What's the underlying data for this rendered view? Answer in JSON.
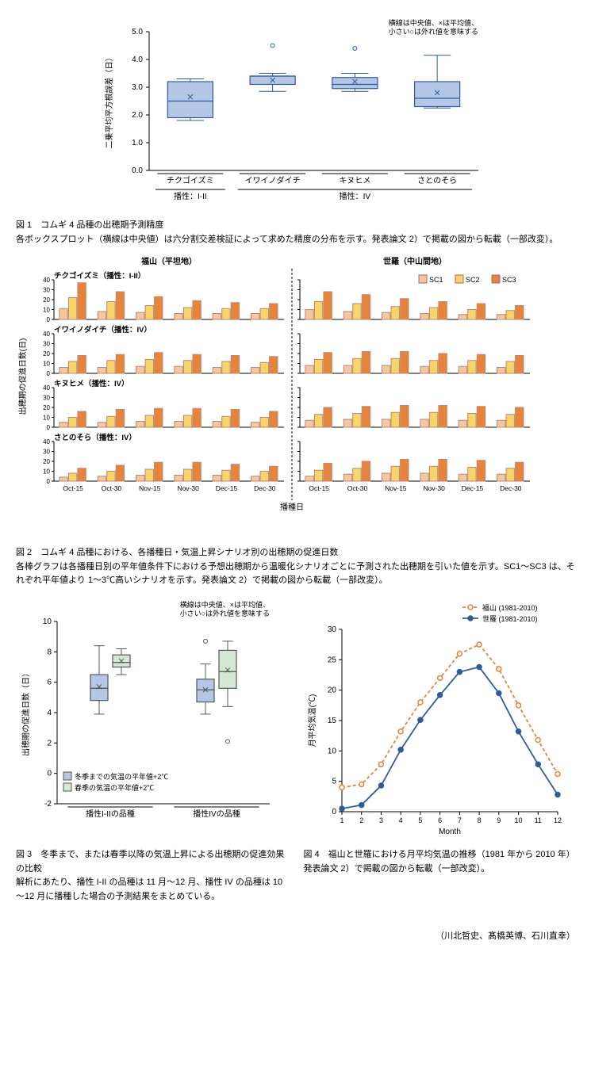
{
  "fig1": {
    "type": "boxplot",
    "note": "横線は中央値、×は平均値、\n小さい○は外れ値を意味する",
    "ylabel": "二乗平均平方根誤差（日）",
    "ylim": [
      0,
      5
    ],
    "ytick_step": 1.0,
    "categories": [
      "チクゴイズミ",
      "イワイノダイチ",
      "キヌヒメ",
      "さとのそら"
    ],
    "group_labels": [
      "播性：I-II",
      "播性：IV"
    ],
    "group_spans": [
      [
        0,
        0
      ],
      [
        1,
        3
      ]
    ],
    "boxes": [
      {
        "q1": 1.9,
        "median": 2.5,
        "q3": 3.2,
        "whisker_lo": 1.8,
        "whisker_hi": 3.3,
        "mean": 2.65,
        "outliers": []
      },
      {
        "q1": 3.1,
        "median": 3.4,
        "q3": 3.4,
        "whisker_lo": 2.85,
        "whisker_hi": 3.5,
        "mean": 3.25,
        "outliers": [
          4.5
        ]
      },
      {
        "q1": 2.95,
        "median": 3.1,
        "q3": 3.35,
        "whisker_lo": 2.85,
        "whisker_hi": 3.5,
        "mean": 3.2,
        "outliers": [
          4.4
        ]
      },
      {
        "q1": 2.3,
        "median": 2.6,
        "q3": 3.2,
        "whisker_lo": 2.25,
        "whisker_hi": 4.15,
        "mean": 2.8,
        "outliers": []
      }
    ],
    "box_fill": "#b4c7e7",
    "box_stroke": "#2e5c9a",
    "caption_title": "図 1　コムギ 4 品種の出穂期予測精度",
    "caption_body": "各ボックスプロット（横線は中央値）は六分割交差検証によって求めた精度の分布を示す。発表論文 2）で掲載の図から転載（一部改変）。"
  },
  "fig2": {
    "type": "grouped-bar-grid",
    "ylabel": "出穂期の促進日数(日)",
    "xlabel": "播種日",
    "col_headers": [
      "福山（平坦地）",
      "世羅（中山間地）"
    ],
    "row_labels": [
      "チクゴイズミ（播性：I-II）",
      "イワイノダイチ（播性：IV）",
      "キヌヒメ（播性：IV）",
      "さとのそら（播性：IV）"
    ],
    "x_categories": [
      "Oct-15",
      "Oct-30",
      "Nov-15",
      "Nov-30",
      "Dec-15",
      "Dec-30"
    ],
    "series": [
      "SC1",
      "SC2",
      "SC3"
    ],
    "series_colors": [
      "#f4c7a1",
      "#f8d568",
      "#e8833a"
    ],
    "yticks": [
      0,
      10,
      20,
      30,
      40
    ],
    "grid": [
      [
        [
          [
            11,
            22,
            37
          ],
          [
            8,
            18,
            28
          ],
          [
            7,
            14,
            23
          ],
          [
            6,
            12,
            19
          ],
          [
            6,
            11,
            17
          ],
          [
            6,
            11,
            16
          ]
        ],
        [
          [
            10,
            18,
            28
          ],
          [
            8,
            16,
            25
          ],
          [
            7,
            13,
            21
          ],
          [
            6,
            12,
            18
          ],
          [
            5,
            10,
            16
          ],
          [
            5,
            9,
            14
          ]
        ]
      ],
      [
        [
          [
            6,
            12,
            18
          ],
          [
            6,
            13,
            19
          ],
          [
            7,
            14,
            21
          ],
          [
            7,
            13,
            19
          ],
          [
            6,
            12,
            18
          ],
          [
            6,
            11,
            17
          ]
        ],
        [
          [
            8,
            14,
            21
          ],
          [
            8,
            15,
            22
          ],
          [
            8,
            15,
            22
          ],
          [
            7,
            13,
            20
          ],
          [
            7,
            13,
            19
          ],
          [
            6,
            12,
            18
          ]
        ]
      ],
      [
        [
          [
            5,
            10,
            16
          ],
          [
            5,
            11,
            18
          ],
          [
            6,
            12,
            19
          ],
          [
            6,
            12,
            19
          ],
          [
            6,
            11,
            18
          ],
          [
            5,
            10,
            16
          ]
        ],
        [
          [
            7,
            13,
            20
          ],
          [
            8,
            14,
            21
          ],
          [
            8,
            15,
            22
          ],
          [
            8,
            15,
            22
          ],
          [
            7,
            14,
            21
          ],
          [
            7,
            13,
            20
          ]
        ]
      ],
      [
        [
          [
            4,
            8,
            13
          ],
          [
            5,
            10,
            16
          ],
          [
            6,
            12,
            19
          ],
          [
            6,
            12,
            19
          ],
          [
            6,
            11,
            17
          ],
          [
            5,
            10,
            15
          ]
        ],
        [
          [
            5,
            11,
            18
          ],
          [
            7,
            13,
            20
          ],
          [
            8,
            15,
            22
          ],
          [
            8,
            15,
            22
          ],
          [
            7,
            14,
            21
          ],
          [
            7,
            13,
            19
          ]
        ]
      ]
    ],
    "caption_title": "図 2　コムギ 4 品種における、各播種日・気温上昇シナリオ別の出穂期の促進日数",
    "caption_body": "各棒グラフは各播種日別の平年値条件下における予想出穂期から温暖化シナリオごとに予測された出穂期を引いた値を示す。SC1～SC3 は、それぞれ平年値より 1～3℃高いシナリオを示す。発表論文 2）で掲載の図から転載（一部改変）。"
  },
  "fig3": {
    "type": "boxplot",
    "note": "横線は中央値、×は平均値、\n小さい○は外れ値を意味する",
    "ylabel": "出穂期の促進日数（日）",
    "ylim": [
      -2,
      10
    ],
    "ytick_step": 2,
    "categories": [
      "播性I-IIの品種",
      "播性IVの品種"
    ],
    "series": [
      "冬季までの気温の平年値+2℃",
      "春季の気温の平年値+2℃"
    ],
    "series_colors": [
      "#b4c7e7",
      "#d5e8d5"
    ],
    "boxes": [
      [
        {
          "q1": 4.8,
          "median": 5.6,
          "q3": 6.5,
          "whisker_lo": 3.9,
          "whisker_hi": 8.4,
          "mean": 5.7,
          "outliers": []
        },
        {
          "q1": 7.0,
          "median": 7.3,
          "q3": 7.8,
          "whisker_lo": 6.5,
          "whisker_hi": 8.2,
          "mean": 7.4,
          "outliers": []
        }
      ],
      [
        {
          "q1": 4.7,
          "median": 5.5,
          "q3": 6.2,
          "whisker_lo": 3.9,
          "whisker_hi": 7.2,
          "mean": 5.5,
          "outliers": [
            8.7
          ]
        },
        {
          "q1": 5.6,
          "median": 6.7,
          "q3": 8.1,
          "whisker_lo": 4.4,
          "whisker_hi": 8.7,
          "mean": 6.8,
          "outliers": [
            2.1
          ]
        }
      ]
    ],
    "caption_title": "図 3　冬季まで、または春季以降の気温上昇による出穂期の促進効果の比較",
    "caption_body": "解析にあたり、播性 I-II の品種は 11 月～12 月、播性 IV の品種は 10～12 月に播種した場合の予測結果をまとめている。"
  },
  "fig4": {
    "type": "line",
    "ylabel": "月平均気温(℃)",
    "xlabel": "Month",
    "ylim": [
      0,
      30
    ],
    "ytick_step": 5,
    "x": [
      1,
      2,
      3,
      4,
      5,
      6,
      7,
      8,
      9,
      10,
      11,
      12
    ],
    "series": [
      {
        "name": "福山 (1981-2010)",
        "color": "#e8833a",
        "dash": "4,3",
        "marker": "circle-open",
        "markerfill": "#ffffff",
        "y": [
          4.0,
          4.5,
          7.8,
          13.2,
          18.0,
          22.0,
          26.0,
          27.5,
          23.5,
          17.5,
          11.8,
          6.2
        ]
      },
      {
        "name": "世羅 (1981-2010)",
        "color": "#2e5c9a",
        "dash": "",
        "marker": "circle",
        "markerfill": "#2e5c9a",
        "y": [
          0.5,
          1.1,
          4.3,
          10.2,
          15.1,
          19.2,
          23.0,
          23.8,
          19.5,
          13.2,
          7.8,
          2.8
        ]
      }
    ],
    "caption_title": "図 4　福山と世羅における月平均気温の推移（1981 年から 2010 年）",
    "caption_body": "発表論文 2）で掲載の図から転載（一部改変）。"
  },
  "authors": "（川北哲史、髙橋英博、石川直幸）"
}
